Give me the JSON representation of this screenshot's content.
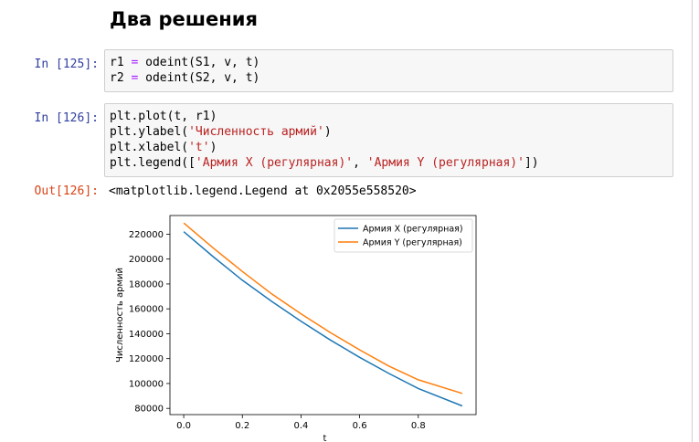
{
  "heading": "Два решения",
  "cell1": {
    "prompt": "In [125]:",
    "lines": [
      {
        "parts": [
          {
            "t": "r1 "
          },
          {
            "t": "=",
            "c": "op"
          },
          {
            "t": " odeint(S1, v, t)"
          }
        ]
      },
      {
        "parts": [
          {
            "t": "r2 "
          },
          {
            "t": "=",
            "c": "op"
          },
          {
            "t": " odeint(S2, v, t)"
          }
        ]
      }
    ]
  },
  "cell2": {
    "prompt": "In [126]:",
    "lines": [
      {
        "parts": [
          {
            "t": "plt.plot(t, r1)"
          }
        ]
      },
      {
        "parts": [
          {
            "t": "plt.ylabel("
          },
          {
            "t": "'Численность армий'",
            "c": "str"
          },
          {
            "t": ")"
          }
        ]
      },
      {
        "parts": [
          {
            "t": "plt.xlabel("
          },
          {
            "t": "'t'",
            "c": "str"
          },
          {
            "t": ")"
          }
        ]
      },
      {
        "parts": [
          {
            "t": "plt.legend(["
          },
          {
            "t": "'Армия X (регулярная)'",
            "c": "str"
          },
          {
            "t": ", "
          },
          {
            "t": "'Армия Y (регулярная)'",
            "c": "str"
          },
          {
            "t": "])"
          }
        ]
      }
    ]
  },
  "output": {
    "prompt": "Out[126]:",
    "text": "<matplotlib.legend.Legend at 0x2055e558520>"
  },
  "chart_data": {
    "type": "line",
    "xlabel": "t",
    "ylabel": "Численность армий",
    "xlim": [
      -0.047,
      0.997
    ],
    "ylim": [
      75000,
      235000
    ],
    "xticks": [
      0.0,
      0.2,
      0.4,
      0.6,
      0.8
    ],
    "xtick_labels": [
      "0.0",
      "0.2",
      "0.4",
      "0.6",
      "0.8"
    ],
    "yticks": [
      80000,
      100000,
      120000,
      140000,
      160000,
      180000,
      200000,
      220000
    ],
    "ytick_labels": [
      "80000",
      "100000",
      "120000",
      "140000",
      "160000",
      "180000",
      "200000",
      "220000"
    ],
    "legend_position": "top-right",
    "grid": false,
    "series": [
      {
        "name": "Армия X (регулярная)",
        "color": "#1f77b4",
        "x": [
          0.0,
          0.1,
          0.2,
          0.3,
          0.4,
          0.5,
          0.6,
          0.7,
          0.8,
          0.95
        ],
        "y": [
          222000,
          202000,
          183000,
          166000,
          150000,
          135000,
          121000,
          108000,
          96000,
          82000
        ]
      },
      {
        "name": "Армия Y (регулярная)",
        "color": "#ff7f0e",
        "x": [
          0.0,
          0.1,
          0.2,
          0.3,
          0.4,
          0.5,
          0.6,
          0.7,
          0.8,
          0.95
        ],
        "y": [
          229000,
          209000,
          190000,
          172000,
          156000,
          141000,
          127000,
          114000,
          103000,
          92000
        ]
      }
    ]
  }
}
